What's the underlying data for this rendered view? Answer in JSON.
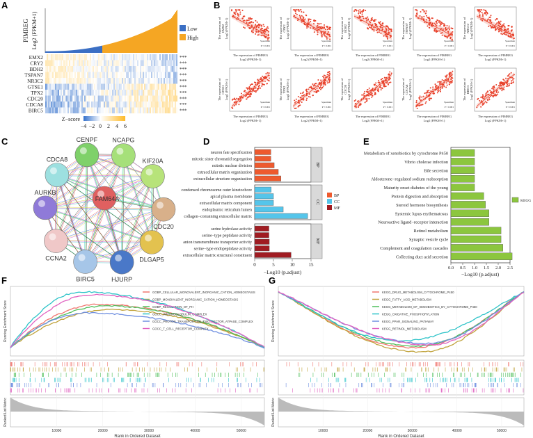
{
  "panel_labels": [
    "A",
    "B",
    "C",
    "D",
    "E",
    "F",
    "G"
  ],
  "colors": {
    "low": "#3b6fc4",
    "high": "#f5a623",
    "bp": "#ee5a2e",
    "cc": "#55c5ea",
    "mf": "#a01c22",
    "kegg": "#8cc63e",
    "scatter": "#e8402a"
  },
  "chart_data": [
    {
      "panel": "A",
      "type": "heatmap",
      "bar_ylabel": "PIMREG",
      "bar_ylabel2": "Log2 (FPKM+1)",
      "legend": [
        "Low",
        "High"
      ],
      "genes": [
        "EMX2",
        "CRY2",
        "BDH2",
        "TSPAN7",
        "NR3C2",
        "GTSE1",
        "TPX2",
        "CDC20",
        "CDCA8",
        "BIRC5"
      ],
      "significance": [
        "***",
        "***",
        "***",
        "***",
        "***",
        "***",
        "***",
        "***",
        "***",
        "***"
      ],
      "colorbar_title": "Z−score",
      "colorbar_ticks": [
        "−4",
        "−2",
        "0",
        "2",
        "4",
        "6"
      ]
    },
    {
      "panel": "B",
      "type": "scatter",
      "xlabel": "The expression of PIMREG",
      "xlabel2": "Log2 (FPKM+1)",
      "ylabel_prefix": "The expression of",
      "ylabel2": "Log2 (FPKM+1)",
      "stat_label": "Spearman",
      "p_label": "P < 0.001",
      "genes_negative": [
        "EMX2",
        "CRY2",
        "BDH2",
        "TSPAN7",
        "NR3C2"
      ],
      "genes_positive": [
        "GTSE1",
        "TPX2",
        "CDC20",
        "CDCA8",
        "BIRC5"
      ]
    },
    {
      "panel": "C",
      "type": "network",
      "nodes": [
        "CENPF",
        "NCAPG",
        "KIF20A",
        "CDC20",
        "DLGAP5",
        "HJURP",
        "BIRC5",
        "CCNA2",
        "AURKB",
        "CDCA8",
        "FAM64A"
      ]
    },
    {
      "panel": "D",
      "type": "bar",
      "xlabel": "−Log10 (p.adjust)",
      "xlim": [
        0,
        15
      ],
      "xticks": [
        "0",
        "5",
        "10",
        "15"
      ],
      "legend": [
        "BP",
        "CC",
        "MF"
      ],
      "groups": [
        {
          "name": "BP",
          "categories": [
            "neuron fate specification",
            "mitotic sister chromatid segregation",
            "mitotic nuclear division",
            "extracellular matrix organization",
            "extracellular structure organization"
          ],
          "values": [
            4.3,
            4.3,
            5.2,
            6.3,
            7.0
          ]
        },
        {
          "name": "CC",
          "categories": [
            "condensed chromosome outer kinetochore",
            "apical plasma membrane",
            "extracellular matrix component",
            "endoplasmic reticulum lumen",
            "collagen−containing extracellular matrix"
          ],
          "values": [
            4.4,
            5.0,
            5.0,
            7.6,
            14.1
          ]
        },
        {
          "name": "MF",
          "categories": [
            "serine hydrolase activity",
            "serine−type peptidase activity",
            "anion transmembrane transporter activity",
            "serine−type endopeptidase activity",
            "extracellular matrix structural constituent"
          ],
          "values": [
            3.8,
            3.8,
            3.9,
            3.9,
            9.7
          ]
        }
      ]
    },
    {
      "panel": "E",
      "type": "bar",
      "xlabel": "−Log10 (p.adjust)",
      "xlim": [
        0,
        2.5
      ],
      "xticks": [
        "0.0",
        "0.5",
        "1.0",
        "1.5",
        "2.0",
        "2.5"
      ],
      "legend": [
        "KEGG"
      ],
      "categories": [
        "Metabolism of xenobiotics by cytochrome P450",
        "Vibrio cholerae infection",
        "Bile secretion",
        "Aldosterone−regulated sodium reabsorption",
        "Maturity onset diabetes of the young",
        "Protein digestion and absorption",
        "Steroid hormone biosynthesis",
        "Systemic lupus erythematosus",
        "Neuroactive ligand−receptor interaction",
        "Retinol metabolism",
        "Synaptic vesicle cycle",
        "Complement and coagulation cascades",
        "Collecting duct acid secretion"
      ],
      "values": [
        1.0,
        1.0,
        1.0,
        1.0,
        1.0,
        1.39,
        1.46,
        1.61,
        1.61,
        2.12,
        2.12,
        2.2,
        2.59
      ]
    },
    {
      "panel": "F",
      "type": "line",
      "ylabel": "Running Enrichment Score",
      "ylabel2": "Ranked List Metric",
      "xlabel": "Rank in Ordered Dataset",
      "xticks": [
        "10000",
        "20000",
        "30000",
        "40000",
        "50000"
      ],
      "xlim": [
        0,
        55000
      ],
      "series": [
        {
          "name": "GOBP_CELLULAR_MONOVALENT_INORGANIC_CATION_HOMEOSTASIS",
          "color": "#f0766f"
        },
        {
          "name": "GOBP_MONOVALENT_INORGANIC_CATION_HOMEOSTASIS",
          "color": "#c0a23a"
        },
        {
          "name": "GOBP_REGULATION_OF_PH",
          "color": "#4fbf5a"
        },
        {
          "name": "GOCC_IMMUNOGLOBULIN_COMPLEX",
          "color": "#2cc3c8"
        },
        {
          "name": "GOCC_PROTON_TRANSPORTING_TWO_SECTOR_ATPASE_COMPLEX",
          "color": "#6f8fe0"
        },
        {
          "name": "GOCC_T_CELL_RECEPTOR_COMPLEX",
          "color": "#e061c0"
        }
      ]
    },
    {
      "panel": "G",
      "type": "line",
      "ylabel": "Running Enrichment Score",
      "ylabel2": "Ranked List Metric",
      "xlabel": "Rank in Ordered Dataset",
      "xticks": [
        "10000",
        "20000",
        "30000",
        "40000",
        "50000"
      ],
      "xlim": [
        0,
        55000
      ],
      "series": [
        {
          "name": "KEGG_DRUG_METABOLISM_CYTOCHROME_P450",
          "color": "#f0766f"
        },
        {
          "name": "KEGG_FATTY_ACID_METABOLISM",
          "color": "#c0a23a"
        },
        {
          "name": "KEGG_METABOLISM_OF_XENOBIOTICS_BY_CYTOCHROME_P450",
          "color": "#4fbf5a"
        },
        {
          "name": "KEGG_OXIDATIVE_PHOSPHORYLATION",
          "color": "#2cc3c8"
        },
        {
          "name": "KEGG_PPAR_SIGNALING_PATHWAY",
          "color": "#6f8fe0"
        },
        {
          "name": "KEGG_RETINOL_METABOLISM",
          "color": "#e061c0"
        }
      ]
    }
  ]
}
